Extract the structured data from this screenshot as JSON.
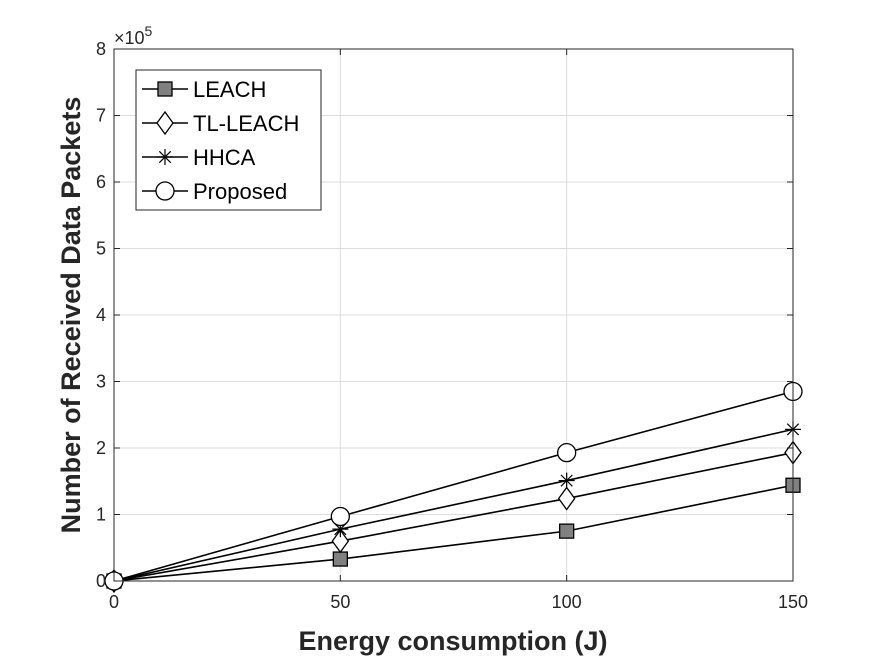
{
  "chart_data": {
    "type": "line",
    "xlabel": "Energy consumption (J)",
    "ylabel": "Number of Received Data Packets",
    "x": [
      0,
      50,
      100,
      150
    ],
    "xlim": [
      0,
      150
    ],
    "ylim": [
      0,
      800000
    ],
    "xticks": [
      "0",
      "50",
      "100",
      "150"
    ],
    "yticks": [
      "0",
      "1",
      "2",
      "3",
      "4",
      "5",
      "6",
      "7",
      "8"
    ],
    "y_exponent": {
      "base": "×10",
      "power": "5"
    },
    "grid": true,
    "legend_position": "top-left",
    "series": [
      {
        "name": "LEACH",
        "marker": "square",
        "values": [
          0,
          33000,
          75000,
          144000
        ]
      },
      {
        "name": "TL-LEACH",
        "marker": "diamond",
        "values": [
          0,
          60000,
          124000,
          193000
        ]
      },
      {
        "name": "HHCA",
        "marker": "asterisk",
        "values": [
          0,
          78000,
          151000,
          228000
        ]
      },
      {
        "name": "Proposed",
        "marker": "circle",
        "values": [
          0,
          97000,
          193000,
          285000
        ]
      }
    ]
  }
}
